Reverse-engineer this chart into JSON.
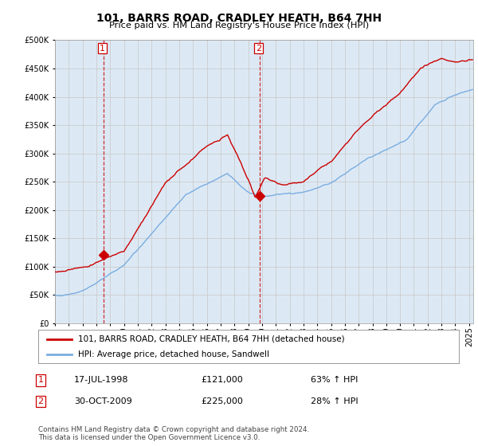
{
  "title": "101, BARRS ROAD, CRADLEY HEATH, B64 7HH",
  "subtitle": "Price paid vs. HM Land Registry's House Price Index (HPI)",
  "legend_label_red": "101, BARRS ROAD, CRADLEY HEATH, B64 7HH (detached house)",
  "legend_label_blue": "HPI: Average price, detached house, Sandwell",
  "annotation1_date": "17-JUL-1998",
  "annotation1_price": "£121,000",
  "annotation1_hpi": "63% ↑ HPI",
  "annotation2_date": "30-OCT-2009",
  "annotation2_price": "£225,000",
  "annotation2_hpi": "28% ↑ HPI",
  "footnote": "Contains HM Land Registry data © Crown copyright and database right 2024.\nThis data is licensed under the Open Government Licence v3.0.",
  "ylim": [
    0,
    500000
  ],
  "yticks": [
    0,
    50000,
    100000,
    150000,
    200000,
    250000,
    300000,
    350000,
    400000,
    450000,
    500000
  ],
  "red_color": "#cc0000",
  "blue_color": "#7aade0",
  "blue_fill": "#dce9f5",
  "vline_color": "#cc0000",
  "grid_color": "#cccccc",
  "bg_color": "#ffffff",
  "sale1_year": 1998.54,
  "sale1_price": 121000,
  "sale2_year": 2009.83,
  "sale2_price": 225000,
  "xmin": 1995.0,
  "xmax": 2025.3
}
